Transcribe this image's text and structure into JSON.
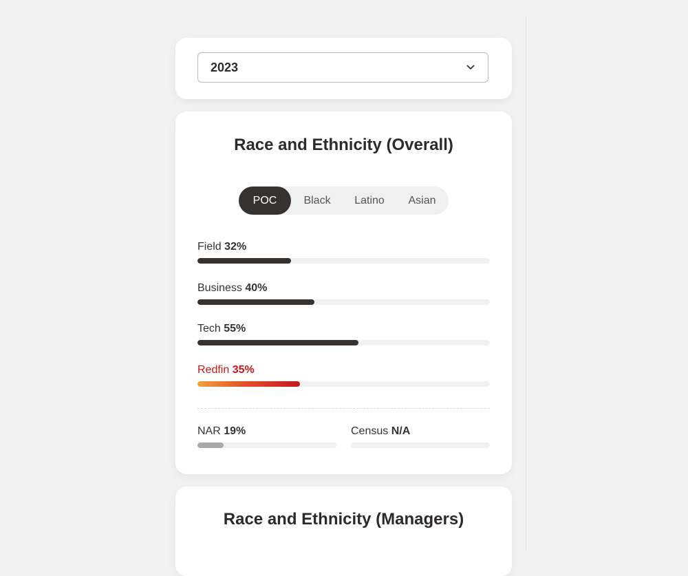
{
  "year_select": {
    "value": "2023",
    "icon": "chevron-down-icon"
  },
  "overall": {
    "title": "Race and Ethnicity (Overall)",
    "tabs": [
      {
        "label": "POC",
        "active": true
      },
      {
        "label": "Black",
        "active": false
      },
      {
        "label": "Latino",
        "active": false
      },
      {
        "label": "Asian",
        "active": false
      }
    ],
    "metrics": {
      "field": {
        "label": "Field",
        "value": "32%",
        "fraction": 0.32
      },
      "business": {
        "label": "Business",
        "value": "40%",
        "fraction": 0.4
      },
      "tech": {
        "label": "Tech",
        "value": "55%",
        "fraction": 0.55
      },
      "redfin": {
        "label": "Redfin",
        "value": "35%",
        "fraction": 0.35
      }
    },
    "benchmarks": {
      "nar": {
        "label": "NAR",
        "value": "19%",
        "fraction": 0.19
      },
      "census": {
        "label": "Census",
        "value": "N/A",
        "fraction": 0
      }
    }
  },
  "managers": {
    "title": "Race and Ethnicity (Managers)"
  },
  "colors": {
    "dark": "#363230",
    "redfin_red": "#c8161d",
    "gradient_start": "#f0a43a",
    "nar_gray": "#a9a9a9",
    "background": "#f2f2f2"
  }
}
